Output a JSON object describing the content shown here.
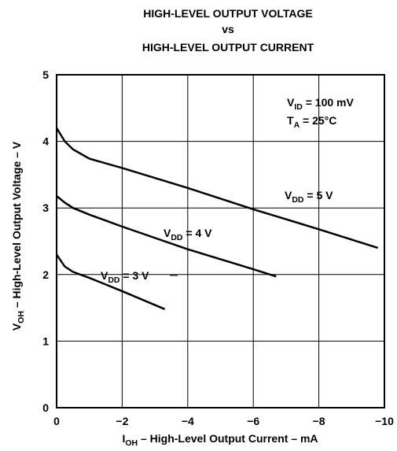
{
  "chart_data": {
    "type": "line",
    "title": [
      "HIGH-LEVEL OUTPUT VOLTAGE",
      "vs",
      "HIGH-LEVEL OUTPUT CURRENT"
    ],
    "x_label": {
      "symbol": "I",
      "subscript": "OH",
      "text": " – High-Level Output Current – mA"
    },
    "y_label": {
      "symbol": "V",
      "subscript": "OH",
      "text": " – High-Level Output Voltage – V"
    },
    "annotations": [
      {
        "symbol": "V",
        "subscript": "ID",
        "text": " = 100 mV"
      },
      {
        "symbol": "T",
        "subscript": "A",
        "text": " = 25°C"
      }
    ],
    "xlim": [
      0,
      -10
    ],
    "xticks": [
      0,
      {
        "value": -2,
        "label": "−2"
      },
      {
        "value": -4,
        "label": "−4"
      },
      {
        "value": -6,
        "label": "−6"
      },
      {
        "value": -8,
        "label": "−8"
      },
      {
        "value": -10,
        "label": "−10"
      }
    ],
    "ylim": [
      0,
      5
    ],
    "yticks": [
      0,
      1,
      2,
      3,
      4,
      5
    ],
    "grid": true,
    "series": [
      {
        "name": {
          "symbol": "V",
          "subscript": "DD",
          "text": " = 5 V"
        },
        "color": "#000000",
        "x": [
          0,
          -0.25,
          -0.5,
          -1,
          -2,
          -4,
          -6,
          -8,
          -9.8
        ],
        "values": [
          4.2,
          4.0,
          3.88,
          3.74,
          3.6,
          3.3,
          2.98,
          2.68,
          2.4
        ]
      },
      {
        "name": {
          "symbol": "V",
          "subscript": "DD",
          "text": " = 4 V"
        },
        "color": "#000000",
        "x": [
          0,
          -0.25,
          -0.5,
          -1,
          -2,
          -4,
          -6,
          -6.7
        ],
        "values": [
          3.18,
          3.08,
          3.0,
          2.9,
          2.72,
          2.38,
          2.08,
          1.97
        ]
      },
      {
        "name": {
          "symbol": "V",
          "subscript": "DD",
          "text": " = 3 V"
        },
        "color": "#000000",
        "x": [
          0,
          -0.25,
          -0.5,
          -1,
          -2,
          -3.3
        ],
        "values": [
          2.3,
          2.12,
          2.04,
          1.95,
          1.75,
          1.48
        ]
      }
    ]
  }
}
